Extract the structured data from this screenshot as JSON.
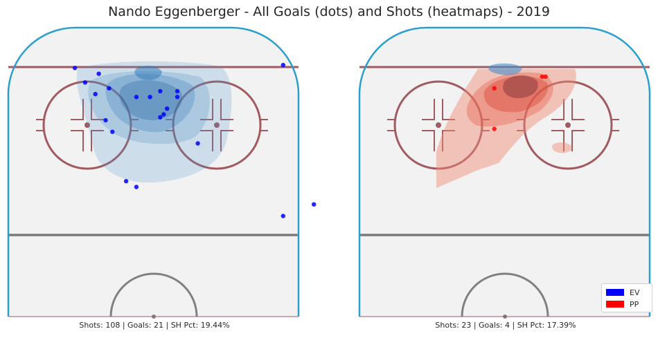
{
  "title": "Nando Eggenberger - All Goals (dots) and Shots (heatmaps) - 2019",
  "chart_data": [
    {
      "type": "scatter",
      "panel": "EV",
      "caption": "Shots: 108 | Goals: 21 | SH Pct: 19.44%",
      "heatmap_color": "#4a90c8",
      "dot_color": "#0000ff",
      "goals": [
        {
          "x": -23,
          "y": 82
        },
        {
          "x": -16,
          "y": 80
        },
        {
          "x": -20,
          "y": 77
        },
        {
          "x": -13,
          "y": 75
        },
        {
          "x": -5,
          "y": 72
        },
        {
          "x": -1,
          "y": 72
        },
        {
          "x": 2,
          "y": 74
        },
        {
          "x": 7,
          "y": 74
        },
        {
          "x": 7,
          "y": 72
        },
        {
          "x": 4,
          "y": 68
        },
        {
          "x": 3,
          "y": 66
        },
        {
          "x": 2,
          "y": 65
        },
        {
          "x": -14,
          "y": 64
        },
        {
          "x": -12,
          "y": 60
        },
        {
          "x": -17,
          "y": 73
        },
        {
          "x": 13,
          "y": 56
        },
        {
          "x": -8,
          "y": 43
        },
        {
          "x": -5,
          "y": 41
        },
        {
          "x": 38,
          "y": 83
        },
        {
          "x": 47,
          "y": 35
        },
        {
          "x": 38,
          "y": 31
        }
      ],
      "shot_density_levels": 5
    },
    {
      "type": "scatter",
      "panel": "PP",
      "caption": "Shots: 23 | Goals: 4 | SH Pct: 17.39%",
      "heatmap_color": "#e8604c",
      "dot_color": "#ff0000",
      "goals": [
        {
          "x": 11,
          "y": 79
        },
        {
          "x": 12,
          "y": 79
        },
        {
          "x": -3,
          "y": 75
        },
        {
          "x": -3,
          "y": 61
        }
      ],
      "shot_density_levels": 5
    }
  ],
  "legend": [
    {
      "label": "EV",
      "color": "#0000ff"
    },
    {
      "label": "PP",
      "color": "#ff0000"
    }
  ]
}
